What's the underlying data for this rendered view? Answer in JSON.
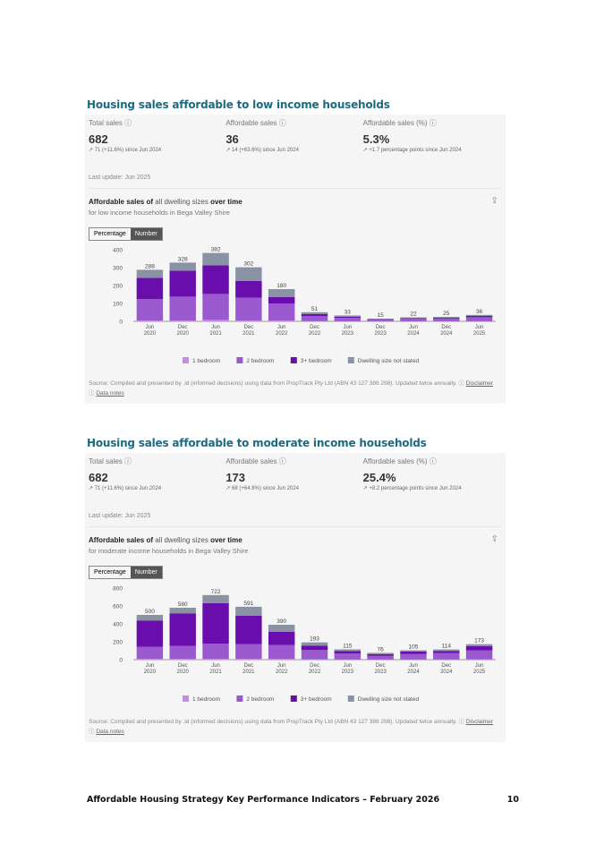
{
  "sections": [
    {
      "title": "Housing sales affordable to low income households",
      "kpis": [
        {
          "label": "Total sales",
          "value": "682",
          "delta": "71 (+11.6%) since Jun 2024"
        },
        {
          "label": "Affordable sales",
          "value": "36",
          "delta": "14 (+63.6%) since Jun 2024"
        },
        {
          "label": "Affordable sales (%)",
          "value": "5.3%",
          "delta": "+1.7 percentage points since Jun 2024"
        }
      ],
      "last_update": "Last update: Jun 2025",
      "chart_title": {
        "a": "Affordable sales of",
        "b": "all dwelling sizes",
        "c": "over time"
      },
      "chart_subtitle": "for low income households in Bega Valley Shire",
      "toggle": [
        "Percentage",
        "Number"
      ],
      "source": "Source: Compiled and presented by .id (informed decisions) using data from PropTrack Pty Ltd (ABN 43 127 386 298). Updated twice annually.",
      "links": [
        "Disclaimer",
        "Data notes"
      ]
    },
    {
      "title": "Housing sales affordable to moderate income households",
      "kpis": [
        {
          "label": "Total sales",
          "value": "682",
          "delta": "71 (+11.6%) since Jun 2024"
        },
        {
          "label": "Affordable sales",
          "value": "173",
          "delta": "68 (+64.8%) since Jun 2024"
        },
        {
          "label": "Affordable sales (%)",
          "value": "25.4%",
          "delta": "+8.2 percentage points since Jun 2024"
        }
      ],
      "last_update": "Last update: Jun 2025",
      "chart_title": {
        "a": "Affordable sales of",
        "b": "all dwelling sizes",
        "c": "over time"
      },
      "chart_subtitle": "for moderate income households in Bega Valley Shire",
      "toggle": [
        "Percentage",
        "Number"
      ],
      "source": "Source: Compiled and presented by .id (informed decisions) using data from PropTrack Pty Ltd (ABN 43 127 386 298). Updated twice annually.",
      "links": [
        "Disclaimer",
        "Data notes"
      ]
    }
  ],
  "chart_data": [
    {
      "type": "bar",
      "stacked": true,
      "categories": [
        [
          "Jun",
          "2020"
        ],
        [
          "Dec",
          "2020"
        ],
        [
          "Jun",
          "2021"
        ],
        [
          "Dec",
          "2021"
        ],
        [
          "Jun",
          "2022"
        ],
        [
          "Dec",
          "2022"
        ],
        [
          "Jun",
          "2023"
        ],
        [
          "Dec",
          "2023"
        ],
        [
          "Jun",
          "2024"
        ],
        [
          "Dec",
          "2024"
        ],
        [
          "Jun",
          "2025"
        ]
      ],
      "ylim": [
        0,
        400
      ],
      "yticks": [
        0,
        100,
        200,
        300,
        400
      ],
      "grid": false,
      "legend": "bottom",
      "totals": [
        288,
        328,
        382,
        302,
        180,
        51,
        33,
        15,
        22,
        25,
        36
      ],
      "series": [
        {
          "name": "1 bedroom",
          "color": "#c48de0",
          "values": [
            5,
            5,
            8,
            5,
            4,
            2,
            1,
            1,
            1,
            1,
            1
          ]
        },
        {
          "name": "2 bedroom",
          "color": "#9b59cf",
          "values": [
            120,
            133,
            145,
            127,
            96,
            28,
            18,
            9,
            13,
            15,
            22
          ]
        },
        {
          "name": "3+ bedroom",
          "color": "#6a0dad",
          "values": [
            118,
            145,
            160,
            93,
            35,
            10,
            6,
            2,
            4,
            4,
            7
          ]
        },
        {
          "name": "Dwelling size not stated",
          "color": "#8a93a3",
          "values": [
            45,
            45,
            69,
            77,
            45,
            11,
            8,
            3,
            4,
            5,
            6
          ]
        }
      ]
    },
    {
      "type": "bar",
      "stacked": true,
      "categories": [
        [
          "Jun",
          "2020"
        ],
        [
          "Dec",
          "2020"
        ],
        [
          "Jun",
          "2021"
        ],
        [
          "Dec",
          "2021"
        ],
        [
          "Jun",
          "2022"
        ],
        [
          "Dec",
          "2022"
        ],
        [
          "Jun",
          "2023"
        ],
        [
          "Dec",
          "2023"
        ],
        [
          "Jun",
          "2024"
        ],
        [
          "Dec",
          "2024"
        ],
        [
          "Jun",
          "2025"
        ]
      ],
      "ylim": [
        0,
        800
      ],
      "yticks": [
        0,
        200,
        400,
        600,
        800
      ],
      "grid": false,
      "legend": "bottom",
      "totals": [
        500,
        580,
        722,
        591,
        390,
        193,
        115,
        76,
        105,
        114,
        173
      ],
      "series": [
        {
          "name": "1 bedroom",
          "color": "#c48de0",
          "values": [
            8,
            8,
            10,
            10,
            8,
            5,
            3,
            2,
            3,
            3,
            5
          ]
        },
        {
          "name": "2 bedroom",
          "color": "#9b59cf",
          "values": [
            135,
            145,
            170,
            165,
            155,
            105,
            65,
            40,
            62,
            70,
            100
          ]
        },
        {
          "name": "3+ bedroom",
          "color": "#6a0dad",
          "values": [
            295,
            365,
            450,
            315,
            147,
            45,
            27,
            20,
            25,
            25,
            45
          ]
        },
        {
          "name": "Dwelling size not stated",
          "color": "#8a93a3",
          "values": [
            62,
            62,
            92,
            101,
            80,
            38,
            20,
            14,
            15,
            16,
            23
          ]
        }
      ]
    }
  ],
  "footer": {
    "title": "Affordable Housing Strategy Key Performance Indicators – February 2026",
    "page": "10"
  }
}
